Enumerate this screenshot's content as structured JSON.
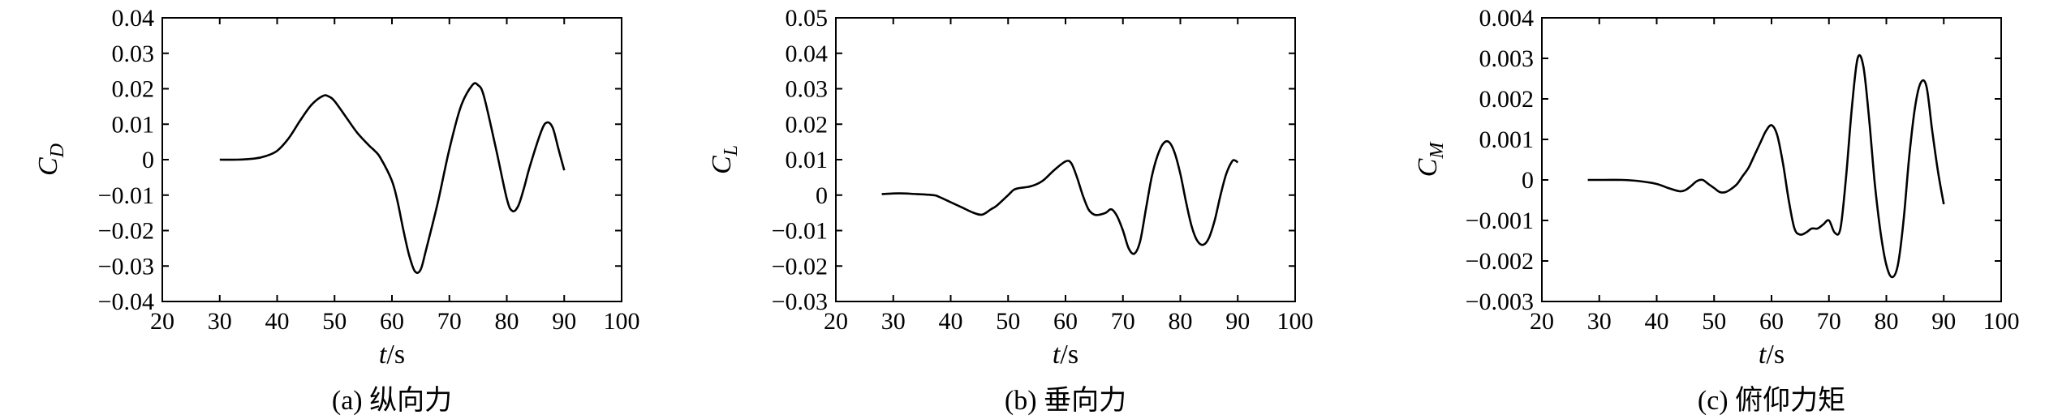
{
  "chart_data": [
    {
      "type": "line",
      "caption": "(a) 纵向力",
      "xlabel_italic": "t",
      "xlabel_unit": "/s",
      "ylabel_main": "C",
      "ylabel_sub": "D",
      "xlim": [
        20,
        100
      ],
      "ylim": [
        -0.04,
        0.04
      ],
      "xticks": [
        20,
        30,
        40,
        50,
        60,
        70,
        80,
        90,
        100
      ],
      "xtick_labels": [
        "20",
        "30",
        "40",
        "50",
        "60",
        "70",
        "80",
        "90",
        "100"
      ],
      "yticks": [
        0.04,
        0.03,
        0.02,
        0.01,
        0,
        -0.01,
        -0.02,
        -0.03,
        -0.04
      ],
      "ytick_labels": [
        "0.04",
        "0.03",
        "0.02",
        "0.01",
        "0",
        "−0.01",
        "−0.02",
        "−0.03",
        "−0.04"
      ],
      "grid": false,
      "series": [
        {
          "color": "#000000",
          "x": [
            30,
            33,
            36,
            38,
            40,
            42,
            44,
            46,
            48,
            49,
            50,
            52,
            54,
            56,
            57,
            58,
            60,
            61,
            62,
            63,
            64,
            65,
            66,
            68,
            70,
            72,
            74,
            75,
            76,
            78,
            80,
            81,
            82,
            83,
            84,
            86,
            87,
            88,
            89,
            90
          ],
          "y": [
            0,
            0,
            0.0003,
            0.001,
            0.0025,
            0.006,
            0.011,
            0.0155,
            0.018,
            0.0178,
            0.0165,
            0.012,
            0.0075,
            0.004,
            0.0025,
            0.0005,
            -0.006,
            -0.012,
            -0.02,
            -0.027,
            -0.0315,
            -0.031,
            -0.025,
            -0.012,
            0.003,
            0.015,
            0.021,
            0.021,
            0.018,
            0.004,
            -0.011,
            -0.0145,
            -0.013,
            -0.008,
            -0.002,
            0.008,
            0.0105,
            0.009,
            0.003,
            -0.003
          ]
        }
      ]
    },
    {
      "type": "line",
      "caption": "(b) 垂向力",
      "xlabel_italic": "t",
      "xlabel_unit": "/s",
      "ylabel_main": "C",
      "ylabel_sub": "L",
      "xlim": [
        20,
        100
      ],
      "ylim": [
        -0.03,
        0.05
      ],
      "xticks": [
        20,
        30,
        40,
        50,
        60,
        70,
        80,
        90,
        100
      ],
      "xtick_labels": [
        "20",
        "30",
        "40",
        "50",
        "60",
        "70",
        "80",
        "90",
        "100"
      ],
      "yticks": [
        0.05,
        0.04,
        0.03,
        0.02,
        0.01,
        0,
        -0.01,
        -0.02,
        -0.03
      ],
      "ytick_labels": [
        "0.05",
        "0.04",
        "0.03",
        "0.02",
        "0.01",
        "0",
        "−0.01",
        "−0.02",
        "−0.03"
      ],
      "grid": false,
      "series": [
        {
          "color": "#000000",
          "x": [
            28,
            31,
            34,
            37,
            38,
            40,
            42,
            44,
            45.5,
            47,
            48,
            50,
            51,
            52,
            54,
            56,
            58,
            60,
            61,
            62,
            63,
            64,
            65,
            66,
            67,
            68,
            69,
            70,
            71,
            72,
            73,
            74,
            75,
            76,
            77,
            78,
            79,
            80,
            81,
            82,
            83,
            84,
            85,
            86,
            87,
            88,
            89,
            89.5,
            90
          ],
          "y": [
            0.0003,
            0.0005,
            0.0003,
            0,
            -0.0005,
            -0.002,
            -0.0035,
            -0.005,
            -0.0055,
            -0.004,
            -0.003,
            0,
            0.0015,
            0.002,
            0.0025,
            0.004,
            0.007,
            0.0095,
            0.009,
            0.005,
            0,
            -0.004,
            -0.0055,
            -0.0055,
            -0.005,
            -0.004,
            -0.006,
            -0.01,
            -0.015,
            -0.0165,
            -0.013,
            -0.004,
            0.005,
            0.011,
            0.0145,
            0.015,
            0.012,
            0.006,
            -0.002,
            -0.009,
            -0.013,
            -0.014,
            -0.012,
            -0.007,
            0,
            0.006,
            0.0095,
            0.0098,
            0.0092
          ]
        }
      ]
    },
    {
      "type": "line",
      "caption": "(c) 俯仰力矩",
      "xlabel_italic": "t",
      "xlabel_unit": "/s",
      "ylabel_main": "C",
      "ylabel_sub": "M",
      "xlim": [
        20,
        100
      ],
      "ylim": [
        -0.003,
        0.004
      ],
      "xticks": [
        20,
        30,
        40,
        50,
        60,
        70,
        80,
        90,
        100
      ],
      "xtick_labels": [
        "20",
        "30",
        "40",
        "50",
        "60",
        "70",
        "80",
        "90",
        "100"
      ],
      "yticks": [
        0.004,
        0.003,
        0.002,
        0.001,
        0,
        -0.001,
        -0.002,
        -0.003
      ],
      "ytick_labels": [
        "0.004",
        "0.003",
        "0.002",
        "0.001",
        "0",
        "−0.001",
        "−0.002",
        "−0.003"
      ],
      "grid": false,
      "series": [
        {
          "color": "#000000",
          "x": [
            28,
            31,
            34,
            37,
            40,
            42,
            44,
            45,
            46,
            47,
            48,
            49,
            50,
            51,
            52,
            53,
            54,
            55,
            56,
            57,
            58,
            59,
            60,
            61,
            62,
            63,
            64,
            65,
            66,
            67,
            68,
            69,
            70,
            71,
            72,
            73,
            74,
            75,
            76,
            77,
            78,
            79,
            80,
            81,
            82,
            83,
            84,
            85,
            86,
            87,
            88,
            89,
            90
          ],
          "y": [
            0,
            0,
            0,
            -3e-05,
            -0.0001,
            -0.0002,
            -0.00028,
            -0.00025,
            -0.00015,
            -3e-05,
            0,
            -0.0001,
            -0.0002,
            -0.0003,
            -0.0003,
            -0.00022,
            -0.0001,
            0.0001,
            0.0003,
            0.0006,
            0.0009,
            0.0012,
            0.00135,
            0.0011,
            0.0004,
            -0.0005,
            -0.0012,
            -0.00135,
            -0.0013,
            -0.0012,
            -0.0012,
            -0.0011,
            -0.001,
            -0.0013,
            -0.0012,
            0.0001,
            0.0018,
            0.003,
            0.0028,
            0.0015,
            -0.0001,
            -0.0013,
            -0.0021,
            -0.0024,
            -0.0021,
            -0.001,
            0.0006,
            0.0018,
            0.0024,
            0.0023,
            0.0012,
            0.0002,
            -0.0006
          ]
        }
      ]
    }
  ]
}
